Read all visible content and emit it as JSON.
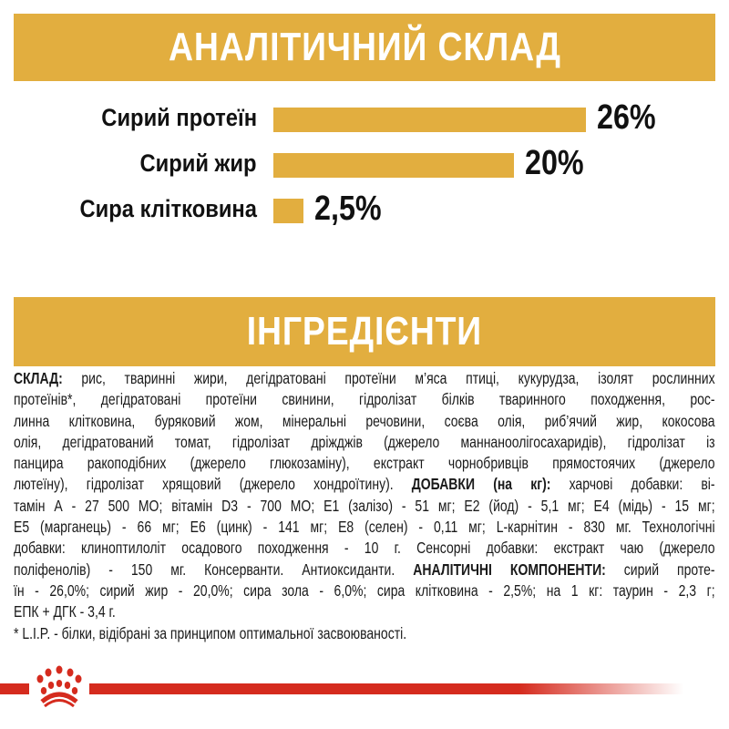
{
  "analytic": {
    "title": "АНАЛІТИЧНИЙ СКЛАД",
    "chart_data": {
      "type": "bar",
      "orientation": "horizontal",
      "categories": [
        "Сирий протеїн",
        "Сирий жир",
        "Сира клітковина"
      ],
      "values": [
        26,
        20,
        2.5
      ],
      "value_labels": [
        "26%",
        "20%",
        "2,5%"
      ],
      "unit": "%",
      "bar_color": "#e2ae3f"
    }
  },
  "ingredients": {
    "title": "ІНГРЕДІЄНТИ",
    "lines": [
      [
        {
          "b": true,
          "t": "СКЛАД:"
        },
        {
          "t": " рис, тваринні жири, дегідратовані протеїни м’яса птиці, кукурудза, ізолят рослинних"
        }
      ],
      [
        {
          "t": "протеїнів*, дегідратовані протеїни свинини, гідролізат білків тваринного походження, рос-"
        }
      ],
      [
        {
          "t": "линна клітковина, буряковий жом, мінеральні речовини, соєва олія, риб’ячий жир, кокосова"
        }
      ],
      [
        {
          "t": "олія, дегідратований томат, гідролізат дріжджів (джерело маннаноолігосахаридів), гідролізат із"
        }
      ],
      [
        {
          "t": "панцира ракоподібних (джерело глюкозаміну), екстракт чорнобривців прямостоячих (джерело"
        }
      ],
      [
        {
          "t": "лютеїну), гідролізат хрящовий (джерело хондроїтину). "
        },
        {
          "b": true,
          "t": "ДОБАВКИ (на кг):"
        },
        {
          "t": " харчові добавки: ві-"
        }
      ],
      [
        {
          "t": "тамін  А - 27 500 МО; вітамін D3 - 700 МО; E1 (залізо) - 51 мг; E2 (йод) - 5,1 мг; E4 (мідь) - 15 мг;"
        }
      ],
      [
        {
          "t": "E5 (марганець) - 66 мг; E6 (цинк) - 141 мг; E8 (селен) - 0,11 мг; L-карнітин - 830 мг. Технологічні"
        }
      ],
      [
        {
          "t": "добавки: клиноптилоліт осадового походження - 10 г. Сенсорні добавки: екстракт чаю (джерело"
        }
      ],
      [
        {
          "t": "поліфенолів) - 150 мг. Консерванти. Антиоксиданти. "
        },
        {
          "b": true,
          "t": "АНАЛІТИЧНІ КОМПОНЕНТИ:"
        },
        {
          "t": " сирий проте-"
        }
      ],
      [
        {
          "t": "їн - 26,0%; сирий жир - 20,0%; сира зола - 6,0%; сира клітковина - 2,5%; на 1 кг: таурин - 2,3 г;"
        }
      ],
      [
        {
          "t": "ЕПК + ДГК - 3,4 г."
        }
      ],
      [
        {
          "t": "* L.I.P. - білки, відібрані за принципом оптимальної засвоюваності."
        }
      ]
    ]
  },
  "colors": {
    "accent": "#e2ae3f",
    "brand_red": "#d52b1e"
  },
  "logo": {
    "icon": "royal-canin-crown-icon"
  }
}
